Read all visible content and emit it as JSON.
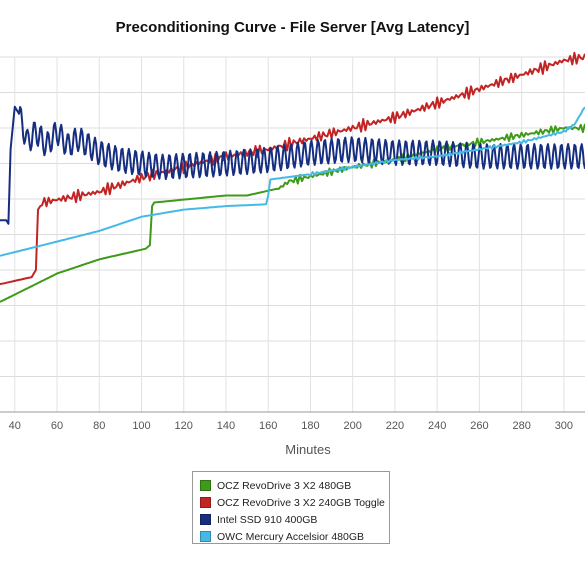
{
  "chart_data": {
    "type": "line",
    "title": "Preconditioning Curve - File Server [Avg Latency]",
    "xlabel": "Minutes",
    "ylabel": "",
    "x_ticks": [
      40,
      60,
      80,
      100,
      120,
      140,
      160,
      180,
      200,
      220,
      240,
      260,
      280,
      300
    ],
    "xlim": [
      33,
      310
    ],
    "ylim": [
      0,
      10
    ],
    "grid": true,
    "legend_position": "bottom-center",
    "series": [
      {
        "name": "OCZ RevoDrive 3 X2 480GB",
        "color": "#3e9a18",
        "noise": 0.12,
        "noise_from": 165,
        "points": [
          [
            33,
            3.1
          ],
          [
            60,
            3.9
          ],
          [
            80,
            4.3
          ],
          [
            102,
            4.6
          ],
          [
            104,
            4.7
          ],
          [
            105,
            5.8
          ],
          [
            106,
            5.9
          ],
          [
            140,
            6.1
          ],
          [
            150,
            6.1
          ],
          [
            165,
            6.3
          ],
          [
            170,
            6.5
          ],
          [
            200,
            6.9
          ],
          [
            220,
            7.1
          ],
          [
            240,
            7.4
          ],
          [
            260,
            7.6
          ],
          [
            280,
            7.8
          ],
          [
            300,
            8.0
          ],
          [
            310,
            8.0
          ]
        ]
      },
      {
        "name": "OCZ RevoDrive 3 X2 240GB Toggle",
        "color": "#c22424",
        "noise": 0.18,
        "noise_from": 52,
        "points": [
          [
            33,
            3.6
          ],
          [
            48,
            3.8
          ],
          [
            50,
            4.0
          ],
          [
            51,
            5.7
          ],
          [
            53,
            5.9
          ],
          [
            80,
            6.2
          ],
          [
            100,
            6.6
          ],
          [
            120,
            6.9
          ],
          [
            140,
            7.2
          ],
          [
            160,
            7.4
          ],
          [
            180,
            7.7
          ],
          [
            200,
            8.0
          ],
          [
            220,
            8.3
          ],
          [
            240,
            8.7
          ],
          [
            260,
            9.1
          ],
          [
            280,
            9.5
          ],
          [
            300,
            9.9
          ],
          [
            310,
            10.0
          ]
        ]
      },
      {
        "name": "Intel SSD 910 400GB",
        "color": "#162e80",
        "noise": 0.0,
        "noise_from": 0,
        "points": [
          [
            33,
            5.4
          ],
          [
            36,
            5.4
          ],
          [
            37,
            5.3
          ],
          [
            38,
            7.4
          ],
          [
            40,
            8.6
          ],
          [
            42,
            8.4
          ],
          [
            44,
            8.0
          ],
          [
            46,
            7.6
          ],
          [
            50,
            7.9
          ],
          [
            55,
            7.5
          ],
          [
            60,
            7.9
          ],
          [
            65,
            7.5
          ],
          [
            70,
            7.7
          ],
          [
            80,
            7.3
          ],
          [
            90,
            7.1
          ],
          [
            110,
            6.9
          ],
          [
            140,
            7.0
          ],
          [
            160,
            7.1
          ],
          [
            180,
            7.3
          ],
          [
            200,
            7.4
          ],
          [
            220,
            7.3
          ],
          [
            240,
            7.3
          ],
          [
            260,
            7.2
          ],
          [
            280,
            7.2
          ],
          [
            310,
            7.2
          ]
        ]
      },
      {
        "name": "OWC Mercury Accelsior 480GB",
        "color": "#45b9e6",
        "noise": 0.05,
        "noise_from": 180,
        "points": [
          [
            33,
            4.4
          ],
          [
            60,
            4.8
          ],
          [
            80,
            5.1
          ],
          [
            100,
            5.5
          ],
          [
            120,
            5.7
          ],
          [
            140,
            5.8
          ],
          [
            159,
            5.85
          ],
          [
            160,
            6.1
          ],
          [
            161,
            6.55
          ],
          [
            180,
            6.7
          ],
          [
            200,
            6.9
          ],
          [
            220,
            7.1
          ],
          [
            240,
            7.2
          ],
          [
            260,
            7.4
          ],
          [
            280,
            7.6
          ],
          [
            300,
            7.9
          ],
          [
            305,
            8.1
          ],
          [
            310,
            8.6
          ]
        ]
      }
    ]
  }
}
